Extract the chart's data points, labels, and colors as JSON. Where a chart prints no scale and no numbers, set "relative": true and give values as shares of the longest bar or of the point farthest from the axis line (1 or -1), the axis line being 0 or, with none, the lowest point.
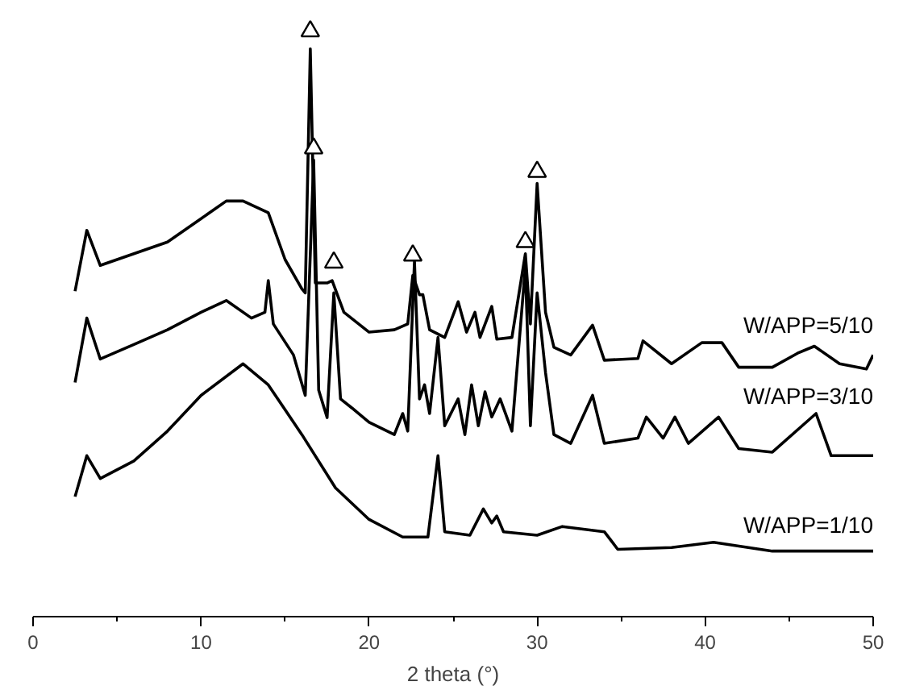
{
  "chart_data": {
    "type": "line",
    "relative": true,
    "xlabel": "2 theta (°)",
    "xlim": [
      0,
      50
    ],
    "xticks": [
      0,
      10,
      20,
      30,
      40,
      50
    ],
    "grid": false,
    "line_style": "solid",
    "series": [
      {
        "name": "W/APP=5/10",
        "color": "#000000",
        "x": [
          2.5,
          3.2,
          4,
          6,
          8,
          10,
          11.5,
          12.5,
          14,
          15,
          16,
          16.2,
          16.5,
          16.8,
          17.5,
          17.8,
          18.5,
          20,
          21.5,
          22.3,
          22.6,
          23,
          23.2,
          23.6,
          24.5,
          25.3,
          25.8,
          26.3,
          26.6,
          27.3,
          27.6,
          28.5,
          29.3,
          29.6,
          30.0,
          30.5,
          31,
          32,
          33.3,
          34,
          36,
          36.3,
          38,
          39.8,
          41,
          42,
          44,
          45.5,
          46.5,
          48,
          49.6,
          50
        ],
        "values": [
          0.556,
          0.66,
          0.6,
          0.62,
          0.64,
          0.68,
          0.71,
          0.71,
          0.69,
          0.61,
          0.56,
          0.553,
          0.97,
          0.57,
          0.57,
          0.574,
          0.52,
          0.486,
          0.49,
          0.5,
          0.583,
          0.55,
          0.55,
          0.49,
          0.477,
          0.538,
          0.486,
          0.52,
          0.477,
          0.53,
          0.474,
          0.477,
          0.62,
          0.5,
          0.74,
          0.52,
          0.46,
          0.447,
          0.498,
          0.438,
          0.441,
          0.471,
          0.432,
          0.468,
          0.468,
          0.426,
          0.426,
          0.45,
          0.462,
          0.432,
          0.423,
          0.447
        ]
      },
      {
        "name": "W/APP=3/10",
        "color": "#000000",
        "x": [
          2.5,
          3.2,
          4,
          6,
          8,
          10,
          11.5,
          13,
          13.8,
          14,
          14.3,
          15.5,
          16.2,
          16.7,
          17,
          17.5,
          17.9,
          18.3,
          19,
          20,
          21.5,
          22,
          22.3,
          22.7,
          23,
          23.3,
          23.6,
          24.1,
          24.5,
          25.3,
          25.7,
          26.1,
          26.5,
          26.9,
          27.3,
          27.8,
          28.5,
          29.3,
          29.6,
          30.0,
          30.5,
          31,
          32,
          33.3,
          34,
          36,
          36.5,
          37.5,
          38.2,
          39,
          40.8,
          42,
          44,
          46.6,
          47.5,
          50
        ],
        "values": [
          0.4,
          0.51,
          0.44,
          0.465,
          0.49,
          0.52,
          0.54,
          0.51,
          0.52,
          0.574,
          0.5,
          0.447,
          0.378,
          0.78,
          0.387,
          0.34,
          0.553,
          0.372,
          0.356,
          0.332,
          0.311,
          0.347,
          0.317,
          0.607,
          0.372,
          0.396,
          0.347,
          0.477,
          0.326,
          0.372,
          0.311,
          0.396,
          0.326,
          0.384,
          0.341,
          0.372,
          0.317,
          0.598,
          0.326,
          0.553,
          0.417,
          0.311,
          0.296,
          0.378,
          0.296,
          0.305,
          0.341,
          0.305,
          0.341,
          0.296,
          0.341,
          0.287,
          0.281,
          0.347,
          0.275,
          0.275
        ]
      },
      {
        "name": "W/APP=1/10",
        "color": "#000000",
        "x": [
          2.5,
          3.2,
          4,
          6,
          8,
          10,
          12.5,
          14,
          16,
          18,
          20,
          22,
          23.5,
          24.1,
          24.5,
          26,
          26.8,
          27.3,
          27.6,
          28,
          30,
          31.5,
          34,
          34.8,
          38,
          40.5,
          44,
          50
        ],
        "values": [
          0.205,
          0.275,
          0.236,
          0.266,
          0.317,
          0.378,
          0.432,
          0.396,
          0.311,
          0.22,
          0.166,
          0.136,
          0.136,
          0.275,
          0.145,
          0.139,
          0.184,
          0.16,
          0.172,
          0.145,
          0.139,
          0.154,
          0.145,
          0.115,
          0.118,
          0.127,
          0.112,
          0.112
        ]
      },
      {
        "type": "scatter",
        "marker": "triangle",
        "color": "#000000",
        "x": [
          16.5,
          16.7,
          17.9,
          22.6,
          29.3,
          30.0
        ],
        "values": [
          1.0,
          0.8,
          0.605,
          0.617,
          0.64,
          0.76
        ]
      }
    ]
  }
}
